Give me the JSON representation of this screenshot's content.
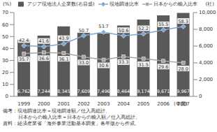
{
  "chart_data": {
    "type": "bar",
    "categories": [
      "1999",
      "2000",
      "2001",
      "2002",
      "2003",
      "2004",
      "2005",
      "2006",
      "2007"
    ],
    "series": [
      {
        "name": "アジア現地法人企業数(右目盛)",
        "type": "bar",
        "axis": "y2",
        "color": "#595959",
        "values": [
          6762,
          7244,
          8345,
          7609,
          7496,
          8464,
          9174,
          9671,
          9967
        ],
        "value_labels": [
          "6,762",
          "7,244",
          "8,345",
          "7,609",
          "7,496",
          "8,464",
          "9,174",
          "9,671",
          "9,967"
        ]
      },
      {
        "name": "現地調達比率",
        "type": "line",
        "axis": "y",
        "color": "#7fa7d3",
        "marker": "diamond",
        "values": [
          42.4,
          41.6,
          43.9,
          50.7,
          53.7,
          50.6,
          52.2,
          55.5,
          58.3
        ],
        "value_labels": [
          "42.4",
          "41.6",
          "43.9",
          "50.7",
          "53.7",
          "50.6",
          "52.2",
          "55.5",
          "58.3"
        ]
      },
      {
        "name": "日本からの輸入比率",
        "type": "line",
        "axis": "y",
        "color": "#a6a6a6",
        "marker": "square",
        "values": [
          35.7,
          36.6,
          36.1,
          33.0,
          30.6,
          33.3,
          31.5,
          29.6,
          28.0
        ],
        "value_labels": [
          "35.7",
          "36.6",
          "36.1",
          "33.0",
          "30.6",
          "33.3",
          "31.5",
          "29.6",
          "28.0"
        ]
      }
    ],
    "y_label": "(%)",
    "y2_label": "(社)",
    "x_label": "(年度)",
    "ylim": [
      0,
      70
    ],
    "yticks": [
      0,
      10,
      20,
      30,
      40,
      50,
      60,
      70
    ],
    "y2lim": [
      0,
      10000
    ],
    "y2ticks": [
      0,
      {
        "value": 2000,
        "label": "2,000"
      },
      {
        "value": 4000,
        "label": "4,000"
      },
      {
        "value": 6000,
        "label": "6,000"
      },
      {
        "value": 8000,
        "label": "8,000"
      },
      {
        "value": 10000,
        "label": "10,000"
      }
    ],
    "grid": false,
    "legend": "top",
    "data_labels": true,
    "annotations": [
      "備考：現地調達比率＝現地調達額／仕入高総計、",
      "日本からの輸入比率＝日本からの輸入額／仕入高総計。",
      "資料：経済産業省「海外事業活動基本調査」各年版から作成。"
    ]
  }
}
